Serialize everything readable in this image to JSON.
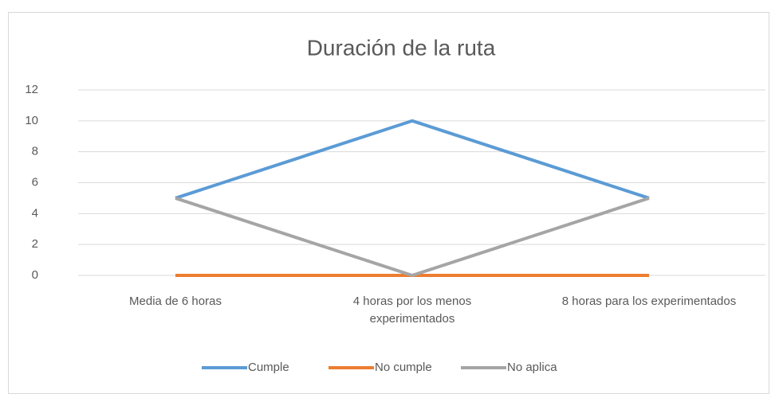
{
  "chart_data": {
    "type": "line",
    "title": "Duración de la ruta",
    "categories": [
      "Media de 6 horas",
      "4 horas por los menos experimentados",
      "8 horas para los experimentados"
    ],
    "series": [
      {
        "name": "Cumple",
        "color": "#5b9bd5",
        "values": [
          5,
          10,
          5
        ]
      },
      {
        "name": "No cumple",
        "color": "#ed7d31",
        "values": [
          0,
          0,
          0
        ]
      },
      {
        "name": "No aplica",
        "color": "#a5a5a5",
        "values": [
          5,
          0,
          5
        ]
      }
    ],
    "ylim": [
      0,
      12
    ],
    "yticks": [
      0,
      2,
      4,
      6,
      8,
      10,
      12
    ],
    "grid": true,
    "legend": "bottom"
  }
}
